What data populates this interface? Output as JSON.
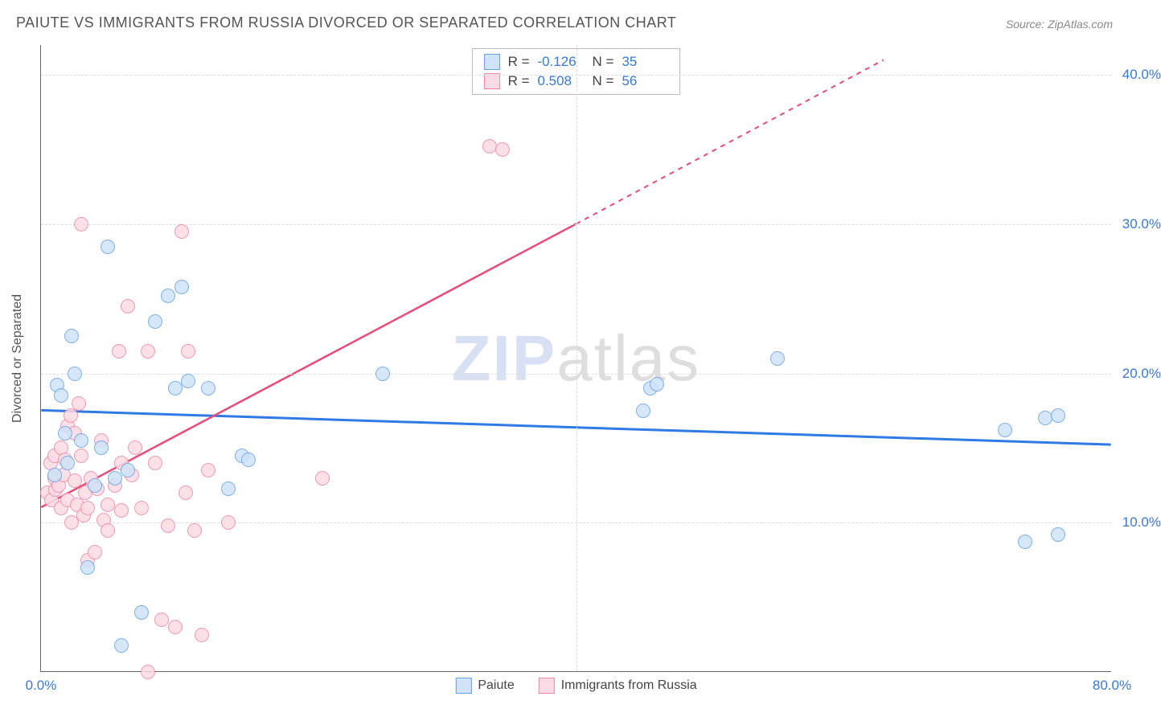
{
  "title": "PAIUTE VS IMMIGRANTS FROM RUSSIA DIVORCED OR SEPARATED CORRELATION CHART",
  "source": "Source: ZipAtlas.com",
  "watermark": {
    "z": "ZIP",
    "rest": "atlas"
  },
  "y_axis_title": "Divorced or Separated",
  "chart": {
    "type": "scatter",
    "xlim": [
      0,
      80
    ],
    "ylim": [
      0,
      42
    ],
    "x_ticks": [
      0,
      80
    ],
    "y_ticks": [
      10,
      20,
      30,
      40
    ],
    "x_tick_labels": [
      "0.0%",
      "80.0%"
    ],
    "y_tick_labels": [
      "10.0%",
      "20.0%",
      "30.0%",
      "40.0%"
    ],
    "x_grid_at": [
      40
    ],
    "background_color": "#ffffff",
    "grid_color": "#dddddd",
    "axis_color": "#666666",
    "tick_label_color": "#3a78d6",
    "marker_radius": 9,
    "marker_border": 1.5
  },
  "series": {
    "paiute": {
      "label": "Paiute",
      "fill": "#cfe3f9",
      "stroke": "#6aa3e6",
      "r_value": "-0.126",
      "n_value": "35",
      "trend": {
        "x1": 0,
        "y1": 17.5,
        "x2": 80,
        "y2": 15.2,
        "color": "#2f7ae5",
        "width": 3,
        "dash": "none"
      },
      "points": [
        [
          1.0,
          13.2
        ],
        [
          1.2,
          19.2
        ],
        [
          1.5,
          18.5
        ],
        [
          1.8,
          16.0
        ],
        [
          2.0,
          14.0
        ],
        [
          2.3,
          22.5
        ],
        [
          3.5,
          7.0
        ],
        [
          4.0,
          12.5
        ],
        [
          5.0,
          28.5
        ],
        [
          5.5,
          13.0
        ],
        [
          6.0,
          1.8
        ],
        [
          7.5,
          4.0
        ],
        [
          8.5,
          23.5
        ],
        [
          9.5,
          25.2
        ],
        [
          10.0,
          19.0
        ],
        [
          10.5,
          25.8
        ],
        [
          11.0,
          19.5
        ],
        [
          12.5,
          19.0
        ],
        [
          15.0,
          14.5
        ],
        [
          15.5,
          14.2
        ],
        [
          14.0,
          12.3
        ],
        [
          25.5,
          20.0
        ],
        [
          45.0,
          17.5
        ],
        [
          45.5,
          19.0
        ],
        [
          46.0,
          19.3
        ],
        [
          55.0,
          21.0
        ],
        [
          72.0,
          16.2
        ],
        [
          75.0,
          17.0
        ],
        [
          76.0,
          17.2
        ],
        [
          73.5,
          8.7
        ],
        [
          76.0,
          9.2
        ],
        [
          2.5,
          20.0
        ],
        [
          3.0,
          15.5
        ],
        [
          4.5,
          15.0
        ],
        [
          6.5,
          13.5
        ]
      ]
    },
    "russia": {
      "label": "Immigrants from Russia",
      "fill": "#fbdbe5",
      "stroke": "#ec8aa8",
      "r_value": "0.508",
      "n_value": "56",
      "trend_solid": {
        "x1": 0,
        "y1": 11.0,
        "x2": 40,
        "y2": 30.0,
        "color": "#e84a7a",
        "width": 2.5
      },
      "trend_dash": {
        "x1": 40,
        "y1": 30.0,
        "x2": 63,
        "y2": 41.0,
        "color": "#e84a7a",
        "width": 2,
        "dash": "6 6"
      },
      "points": [
        [
          0.5,
          12.0
        ],
        [
          0.7,
          14.0
        ],
        [
          0.8,
          11.5
        ],
        [
          1.0,
          13.0
        ],
        [
          1.0,
          14.5
        ],
        [
          1.1,
          12.2
        ],
        [
          1.3,
          12.5
        ],
        [
          1.5,
          11.0
        ],
        [
          1.5,
          15.0
        ],
        [
          1.7,
          13.2
        ],
        [
          1.8,
          14.2
        ],
        [
          2.0,
          16.5
        ],
        [
          2.0,
          11.5
        ],
        [
          2.2,
          17.2
        ],
        [
          2.3,
          10.0
        ],
        [
          2.5,
          12.8
        ],
        [
          2.5,
          16.0
        ],
        [
          2.7,
          11.2
        ],
        [
          2.8,
          18.0
        ],
        [
          3.0,
          30.0
        ],
        [
          3.0,
          14.5
        ],
        [
          3.2,
          10.5
        ],
        [
          3.3,
          12.0
        ],
        [
          3.5,
          11.0
        ],
        [
          3.5,
          7.5
        ],
        [
          3.7,
          13.0
        ],
        [
          4.0,
          8.0
        ],
        [
          4.2,
          12.3
        ],
        [
          4.5,
          15.5
        ],
        [
          4.7,
          10.2
        ],
        [
          5.0,
          11.2
        ],
        [
          5.0,
          9.5
        ],
        [
          5.5,
          12.5
        ],
        [
          5.8,
          21.5
        ],
        [
          6.0,
          14.0
        ],
        [
          6.0,
          10.8
        ],
        [
          6.5,
          24.5
        ],
        [
          6.8,
          13.2
        ],
        [
          7.0,
          15.0
        ],
        [
          7.5,
          11.0
        ],
        [
          8.0,
          21.5
        ],
        [
          8.5,
          14.0
        ],
        [
          9.0,
          3.5
        ],
        [
          9.5,
          9.8
        ],
        [
          10.0,
          3.0
        ],
        [
          10.5,
          29.5
        ],
        [
          10.8,
          12.0
        ],
        [
          11.0,
          21.5
        ],
        [
          11.5,
          9.5
        ],
        [
          12.0,
          2.5
        ],
        [
          12.5,
          13.5
        ],
        [
          8.0,
          0.0
        ],
        [
          21.0,
          13.0
        ],
        [
          33.5,
          35.2
        ],
        [
          34.5,
          35.0
        ],
        [
          14.0,
          10.0
        ]
      ]
    }
  }
}
